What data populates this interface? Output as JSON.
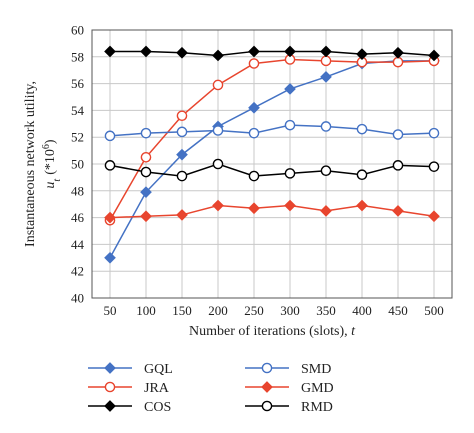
{
  "chart_data": {
    "type": "line",
    "xlabel": "Number of iterations (slots), ",
    "xlabel_var": "t",
    "ylabel_line1": "Instantaneous network utility,",
    "ylabel_var": "u",
    "ylabel_sub": "t",
    "ylabel_unit": "(*10",
    "ylabel_exp": "6",
    "ylabel_close": ")",
    "x": [
      50,
      100,
      150,
      200,
      250,
      300,
      350,
      400,
      450,
      500
    ],
    "xlim": [
      25,
      525
    ],
    "ylim": [
      40,
      60
    ],
    "yticks": [
      40,
      42,
      44,
      46,
      48,
      50,
      52,
      54,
      56,
      58,
      60
    ],
    "grid": true,
    "legend_placement": "bottom",
    "series": [
      {
        "name": "GQL",
        "color": "#4472c4",
        "marker": "diamond",
        "filled": true,
        "values": [
          43.0,
          47.9,
          50.7,
          52.8,
          54.2,
          55.6,
          56.5,
          57.5,
          57.7,
          57.7
        ]
      },
      {
        "name": "JRA",
        "color": "#e8452e",
        "marker": "circle",
        "filled": false,
        "values": [
          45.8,
          50.5,
          53.6,
          55.9,
          57.5,
          57.8,
          57.7,
          57.6,
          57.6,
          57.7
        ]
      },
      {
        "name": "COS",
        "color": "#000000",
        "marker": "diamond",
        "filled": true,
        "values": [
          58.4,
          58.4,
          58.3,
          58.1,
          58.4,
          58.4,
          58.4,
          58.2,
          58.3,
          58.1
        ]
      },
      {
        "name": "SMD",
        "color": "#4472c4",
        "marker": "circle",
        "filled": false,
        "values": [
          52.1,
          52.3,
          52.4,
          52.5,
          52.3,
          52.9,
          52.8,
          52.6,
          52.2,
          52.3
        ]
      },
      {
        "name": "GMD",
        "color": "#e8452e",
        "marker": "diamond",
        "filled": true,
        "values": [
          46.0,
          46.1,
          46.2,
          46.9,
          46.7,
          46.9,
          46.5,
          46.9,
          46.5,
          46.1
        ]
      },
      {
        "name": "RMD",
        "color": "#000000",
        "marker": "circle",
        "filled": false,
        "values": [
          49.9,
          49.4,
          49.1,
          50.0,
          49.1,
          49.3,
          49.5,
          49.2,
          49.9,
          49.8
        ]
      }
    ]
  }
}
